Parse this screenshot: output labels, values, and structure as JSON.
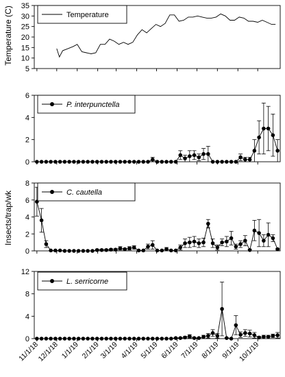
{
  "x_tick_labels": [
    "11/1/18",
    "12/1/18",
    "1/1/19",
    "2/1/19",
    "3/1/19",
    "4/1/19",
    "5/1/19",
    "6/1/19",
    "7/1/19",
    "8/1/19",
    "9/1/19",
    "10/1/19"
  ],
  "shared_ylabel": "Insects/trap/wk",
  "chart_data": [
    {
      "type": "line",
      "title": "",
      "ylabel": "Temperature (C)",
      "ylim": [
        5,
        35
      ],
      "yticks": [
        5,
        10,
        15,
        20,
        25,
        30,
        35
      ],
      "legend": "top-left",
      "series": [
        {
          "name": "Temperature",
          "markers": false,
          "x": [
            "2018-12-01",
            "2018-12-05",
            "2018-12-10",
            "2018-12-18",
            "2018-12-26",
            "2019-01-01",
            "2019-01-08",
            "2019-01-15",
            "2019-01-22",
            "2019-01-29",
            "2019-02-05",
            "2019-02-12",
            "2019-02-19",
            "2019-02-26",
            "2019-03-05",
            "2019-03-12",
            "2019-03-19",
            "2019-03-26",
            "2019-04-02",
            "2019-04-09",
            "2019-04-16",
            "2019-04-23",
            "2019-04-30",
            "2019-05-07",
            "2019-05-14",
            "2019-05-21",
            "2019-05-28",
            "2019-06-04",
            "2019-06-11",
            "2019-06-18",
            "2019-06-25",
            "2019-07-02",
            "2019-07-09",
            "2019-07-16",
            "2019-07-23",
            "2019-07-30",
            "2019-08-06",
            "2019-08-13",
            "2019-08-20",
            "2019-08-27",
            "2019-09-03",
            "2019-09-10",
            "2019-09-17",
            "2019-09-24",
            "2019-10-01",
            "2019-10-08",
            "2019-10-15",
            "2019-10-22",
            "2019-10-28"
          ],
          "y": [
            14.5,
            10.5,
            13.5,
            14.5,
            15.5,
            16.5,
            13,
            12.5,
            12,
            12.5,
            16.5,
            16.5,
            19,
            18,
            16.5,
            17.5,
            16.5,
            17.5,
            21,
            23.5,
            22,
            24,
            26,
            25,
            26.5,
            30.5,
            30.5,
            27.5,
            28,
            29.5,
            29.5,
            30,
            29.5,
            29,
            29,
            29.5,
            31,
            30,
            28,
            28,
            29.5,
            29,
            27.5,
            27.5,
            27,
            28,
            27,
            26,
            26
          ]
        }
      ]
    },
    {
      "type": "line",
      "title": "",
      "ylabel": "",
      "ylim": [
        0,
        6
      ],
      "yticks": [
        0,
        2,
        4,
        6
      ],
      "legend": "top-left",
      "series": [
        {
          "name": "P. interpunctella",
          "x": [
            "2018-11-01",
            "2018-11-08",
            "2018-11-15",
            "2018-11-22",
            "2018-11-29",
            "2018-12-06",
            "2018-12-13",
            "2018-12-20",
            "2018-12-27",
            "2019-01-03",
            "2019-01-10",
            "2019-01-17",
            "2019-01-24",
            "2019-01-31",
            "2019-02-07",
            "2019-02-14",
            "2019-02-21",
            "2019-02-28",
            "2019-03-07",
            "2019-03-14",
            "2019-03-21",
            "2019-03-28",
            "2019-04-04",
            "2019-04-11",
            "2019-04-18",
            "2019-04-25",
            "2019-05-02",
            "2019-05-09",
            "2019-05-16",
            "2019-05-23",
            "2019-05-30",
            "2019-06-06",
            "2019-06-13",
            "2019-06-20",
            "2019-06-27",
            "2019-07-04",
            "2019-07-11",
            "2019-07-18",
            "2019-07-25",
            "2019-08-01",
            "2019-08-08",
            "2019-08-15",
            "2019-08-22",
            "2019-08-29",
            "2019-09-05",
            "2019-09-12",
            "2019-09-19",
            "2019-09-26",
            "2019-10-03",
            "2019-10-10",
            "2019-10-17",
            "2019-10-24",
            "2019-10-31"
          ],
          "y": [
            0,
            0,
            0,
            0,
            0,
            0,
            0,
            0,
            0,
            0,
            0,
            0,
            0,
            0,
            0,
            0,
            0,
            0,
            0,
            0,
            0,
            0,
            0,
            0,
            0,
            0.2,
            0,
            0,
            0,
            0,
            0,
            0.6,
            0.3,
            0.5,
            0.6,
            0.4,
            0.7,
            0.7,
            0,
            0,
            0,
            0,
            0,
            0,
            0.4,
            0.2,
            0.2,
            1,
            2.2,
            3,
            3,
            2.4,
            1
          ],
          "error": [
            0,
            0,
            0,
            0,
            0,
            0,
            0,
            0,
            0,
            0,
            0,
            0,
            0,
            0,
            0,
            0,
            0,
            0,
            0,
            0,
            0,
            0,
            0,
            0,
            0,
            0.2,
            0,
            0,
            0,
            0,
            0,
            0.4,
            0.3,
            0.5,
            0.4,
            0.3,
            0.5,
            0.7,
            0,
            0,
            0,
            0,
            0,
            0,
            0.3,
            0.2,
            0.2,
            1,
            1.5,
            2.3,
            2,
            1.9,
            1
          ]
        }
      ]
    },
    {
      "type": "line",
      "title": "",
      "ylabel": "",
      "ylim": [
        0,
        8
      ],
      "yticks": [
        0,
        2,
        4,
        6,
        8
      ],
      "legend": "top-left",
      "series": [
        {
          "name": "C. cautella",
          "x": [
            "2018-11-01",
            "2018-11-08",
            "2018-11-15",
            "2018-11-22",
            "2018-11-29",
            "2018-12-06",
            "2018-12-13",
            "2018-12-20",
            "2018-12-27",
            "2019-01-03",
            "2019-01-10",
            "2019-01-17",
            "2019-01-24",
            "2019-01-31",
            "2019-02-07",
            "2019-02-14",
            "2019-02-21",
            "2019-02-28",
            "2019-03-07",
            "2019-03-14",
            "2019-03-21",
            "2019-03-28",
            "2019-04-04",
            "2019-04-11",
            "2019-04-18",
            "2019-04-25",
            "2019-05-02",
            "2019-05-09",
            "2019-05-16",
            "2019-05-23",
            "2019-05-30",
            "2019-06-06",
            "2019-06-13",
            "2019-06-20",
            "2019-06-27",
            "2019-07-04",
            "2019-07-11",
            "2019-07-18",
            "2019-07-25",
            "2019-08-01",
            "2019-08-08",
            "2019-08-15",
            "2019-08-22",
            "2019-08-29",
            "2019-09-05",
            "2019-09-12",
            "2019-09-19",
            "2019-09-26",
            "2019-10-03",
            "2019-10-10",
            "2019-10-17",
            "2019-10-24",
            "2019-10-31"
          ],
          "y": [
            5.8,
            3.6,
            0.8,
            0.05,
            0.05,
            0.05,
            0,
            0,
            0,
            0,
            0,
            0,
            0,
            0.1,
            0.1,
            0.1,
            0.15,
            0.15,
            0.3,
            0.2,
            0.3,
            0.4,
            0.05,
            0.05,
            0.5,
            0.7,
            0.05,
            0.05,
            0.2,
            0.05,
            0.05,
            0.4,
            0.9,
            1,
            1.1,
            0.9,
            1,
            3.2,
            0.9,
            0.4,
            1,
            1.1,
            1.5,
            0.5,
            0.8,
            1.2,
            0.1,
            2.4,
            2.1,
            1.2,
            1.9,
            1.5,
            0.2
          ],
          "error": [
            1.7,
            1.4,
            0.4,
            0,
            0,
            0,
            0,
            0,
            0,
            0,
            0,
            0,
            0,
            0.1,
            0.1,
            0.1,
            0.1,
            0.1,
            0.2,
            0.1,
            0.2,
            0.2,
            0,
            0,
            0.3,
            0.5,
            0,
            0,
            0.2,
            0,
            0,
            0.3,
            0.5,
            0.6,
            0.6,
            0.5,
            0.5,
            0.5,
            0.5,
            0.3,
            0.4,
            0.6,
            0.8,
            0.3,
            0.4,
            0.6,
            0.1,
            1.2,
            1.6,
            0.7,
            1.4,
            0.4,
            0.1
          ]
        }
      ]
    },
    {
      "type": "line",
      "title": "",
      "ylabel": "",
      "ylim": [
        0,
        12
      ],
      "yticks": [
        0,
        4,
        8,
        12
      ],
      "legend": "top-left",
      "series": [
        {
          "name": "L. serricorne",
          "x": [
            "2018-11-01",
            "2018-11-08",
            "2018-11-15",
            "2018-11-22",
            "2018-11-29",
            "2018-12-06",
            "2018-12-13",
            "2018-12-20",
            "2018-12-27",
            "2019-01-03",
            "2019-01-10",
            "2019-01-17",
            "2019-01-24",
            "2019-01-31",
            "2019-02-07",
            "2019-02-14",
            "2019-02-21",
            "2019-02-28",
            "2019-03-07",
            "2019-03-14",
            "2019-03-21",
            "2019-03-28",
            "2019-04-04",
            "2019-04-11",
            "2019-04-18",
            "2019-04-25",
            "2019-05-02",
            "2019-05-09",
            "2019-05-16",
            "2019-05-23",
            "2019-05-30",
            "2019-06-06",
            "2019-06-13",
            "2019-06-20",
            "2019-06-27",
            "2019-07-04",
            "2019-07-11",
            "2019-07-18",
            "2019-07-25",
            "2019-08-01",
            "2019-08-08",
            "2019-08-15",
            "2019-08-22",
            "2019-08-29",
            "2019-09-05",
            "2019-09-12",
            "2019-09-19",
            "2019-09-26",
            "2019-10-03",
            "2019-10-10",
            "2019-10-17",
            "2019-10-24",
            "2019-10-31"
          ],
          "y": [
            0,
            0,
            0,
            0,
            0,
            0,
            0,
            0,
            0,
            0,
            0,
            0,
            0,
            0,
            0,
            0,
            0,
            0,
            0,
            0,
            0,
            0,
            0,
            0,
            0,
            0,
            0,
            0,
            0,
            0,
            0.1,
            0.1,
            0.2,
            0.4,
            0.1,
            0.1,
            0.3,
            0.5,
            1,
            0.5,
            5.3,
            0.1,
            0,
            2.4,
            0.7,
            1,
            0.9,
            0.6,
            0.2,
            0.3,
            0.3,
            0.5,
            0.6
          ],
          "error": [
            0,
            0,
            0,
            0,
            0,
            0,
            0,
            0,
            0,
            0,
            0,
            0,
            0,
            0,
            0,
            0,
            0,
            0,
            0,
            0,
            0,
            0,
            0,
            0,
            0,
            0,
            0,
            0,
            0,
            0,
            0.1,
            0.1,
            0.2,
            0.3,
            0.1,
            0.1,
            0.3,
            0.4,
            0.6,
            0.4,
            4.8,
            0.1,
            0,
            1.7,
            0.5,
            0.6,
            0.6,
            0.5,
            0.2,
            0.3,
            0.3,
            0.3,
            0.5
          ]
        }
      ]
    }
  ]
}
